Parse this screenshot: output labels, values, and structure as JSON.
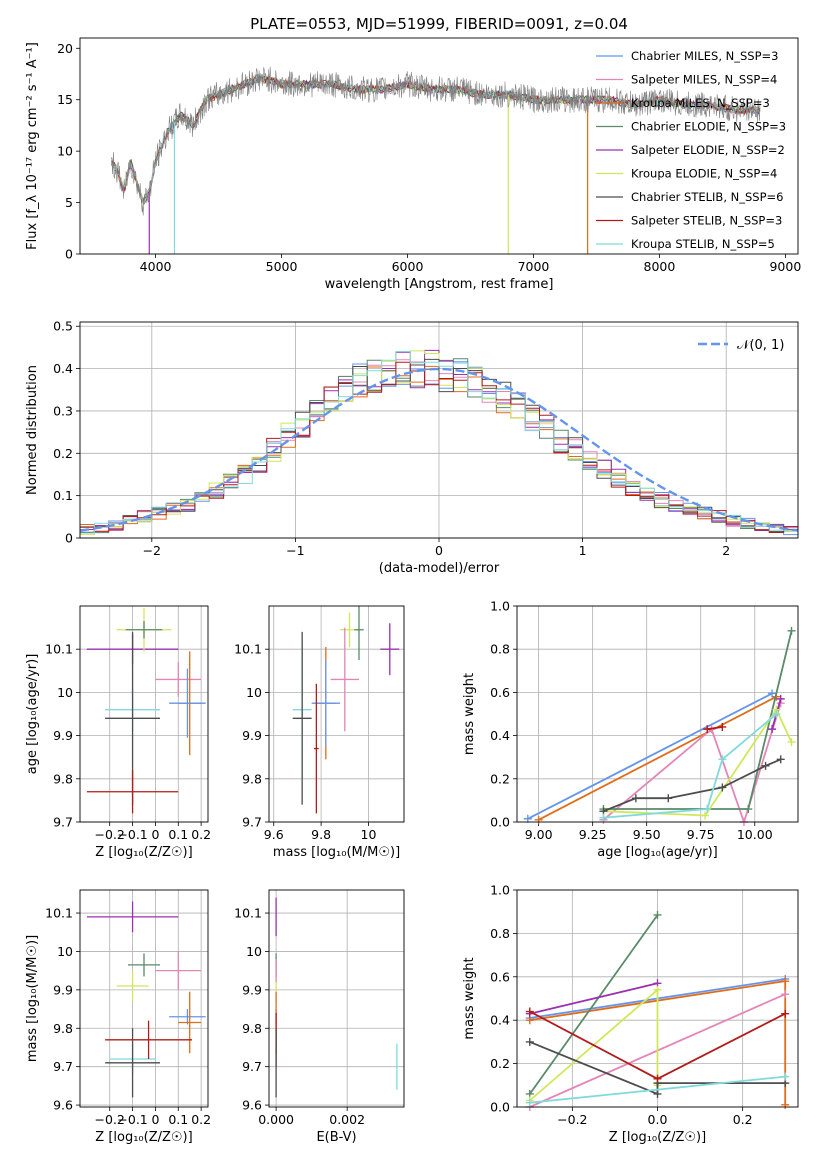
{
  "chart_data": [
    {
      "id": "spectrum",
      "type": "line",
      "title": "PLATE=0553, MJD=51999, FIBERID=0091, z=0.04",
      "xlabel": "wavelength [Angstrom, rest frame]",
      "ylabel": "Flux [f_λ 10⁻¹⁷ erg cm⁻² s⁻¹ A⁻¹]",
      "xlim": [
        3400,
        9100
      ],
      "ylim": [
        0,
        21
      ],
      "xticks": [
        4000,
        5000,
        6000,
        7000,
        8000,
        9000
      ],
      "yticks": [
        0,
        5,
        10,
        15,
        20
      ],
      "grid": false,
      "legend_position": "top-right",
      "legend": [
        {
          "label": "Chabrier MILES, N_SSP=3",
          "color": "#6495ed"
        },
        {
          "label": "Salpeter MILES, N_SSP=4",
          "color": "#e585b7"
        },
        {
          "label": "Kroupa MILES, N_SSP=3",
          "color": "#e06c18"
        },
        {
          "label": "Chabrier ELODIE, N_SSP=3",
          "color": "#5a8a68"
        },
        {
          "label": "Salpeter ELODIE, N_SSP=2",
          "color": "#9b30b0"
        },
        {
          "label": "Kroupa ELODIE, N_SSP=4",
          "color": "#cfe85a"
        },
        {
          "label": "Chabrier STELIB, N_SSP=6",
          "color": "#4d4d4d"
        },
        {
          "label": "Salpeter STELIB, N_SSP=3",
          "color": "#b31b1b"
        },
        {
          "label": "Kroupa STELIB, N_SSP=5",
          "color": "#80dadd"
        }
      ],
      "data_curve": {
        "x": [
          3650,
          3700,
          3750,
          3800,
          3850,
          3900,
          3950,
          4000,
          4100,
          4200,
          4300,
          4400,
          4500,
          4600,
          4700,
          4800,
          4900,
          5000,
          5200,
          5400,
          5600,
          5800,
          6000,
          6200,
          6400,
          6600,
          6800,
          7000,
          7200,
          7400,
          7600,
          7800,
          8000,
          8200,
          8400,
          8600,
          8800
        ],
        "y": [
          9,
          8,
          6,
          9,
          7,
          5,
          6,
          9,
          12,
          13.5,
          12.5,
          15,
          15.5,
          16,
          16.5,
          17,
          17,
          16.5,
          16.5,
          16.5,
          16,
          16,
          16.5,
          16,
          16,
          15.5,
          15.5,
          15,
          15,
          15,
          15,
          14.5,
          15,
          14.5,
          14.5,
          14,
          14
        ]
      }
    },
    {
      "id": "residuals",
      "type": "histogram",
      "xlabel": "(data-model)/error",
      "ylabel": "Normed distribution",
      "xlim": [
        -2.5,
        2.5
      ],
      "ylim": [
        0,
        0.51
      ],
      "xticks": [
        -2,
        -1,
        0,
        1,
        2
      ],
      "yticks": [
        0.0,
        0.1,
        0.2,
        0.3,
        0.4,
        0.5
      ],
      "grid": true,
      "legend_position": "top-right",
      "reference": {
        "label": "𝒩(0, 1)",
        "color": "#6495ed",
        "style": "dashed"
      },
      "bin_centers": [
        -2.45,
        -2.35,
        -2.25,
        -2.15,
        -2.05,
        -1.95,
        -1.85,
        -1.75,
        -1.65,
        -1.55,
        -1.45,
        -1.35,
        -1.25,
        -1.15,
        -1.05,
        -0.95,
        -0.85,
        -0.75,
        -0.65,
        -0.55,
        -0.45,
        -0.35,
        -0.25,
        -0.15,
        -0.05,
        0.05,
        0.15,
        0.25,
        0.35,
        0.45,
        0.55,
        0.65,
        0.75,
        0.85,
        0.95,
        1.05,
        1.15,
        1.25,
        1.35,
        1.45,
        1.55,
        1.65,
        1.75,
        1.85,
        1.95,
        2.05,
        2.15,
        2.25,
        2.35,
        2.45
      ],
      "envelope_values": [
        0.02,
        0.025,
        0.03,
        0.04,
        0.05,
        0.06,
        0.07,
        0.08,
        0.09,
        0.11,
        0.13,
        0.15,
        0.18,
        0.21,
        0.24,
        0.27,
        0.3,
        0.32,
        0.35,
        0.37,
        0.38,
        0.39,
        0.4,
        0.4,
        0.4,
        0.39,
        0.38,
        0.37,
        0.35,
        0.33,
        0.31,
        0.28,
        0.26,
        0.23,
        0.21,
        0.18,
        0.16,
        0.14,
        0.12,
        0.1,
        0.09,
        0.08,
        0.07,
        0.06,
        0.05,
        0.04,
        0.035,
        0.03,
        0.025,
        0.02
      ]
    },
    {
      "id": "age_vs_Z",
      "type": "errorbar",
      "xlabel": "Z [log₁₀(Z/Z☉)]",
      "ylabel": "age  [log₁₀(age/yr)]",
      "xlim": [
        -0.33,
        0.23
      ],
      "ylim": [
        9.7,
        10.2
      ],
      "xticks": [
        -0.2,
        -0.1,
        0.0,
        0.1,
        0.2
      ],
      "yticks": [
        9.7,
        9.8,
        9.9,
        10.0,
        10.1
      ],
      "grid": true,
      "points": [
        {
          "x": -0.1,
          "y": 10.1,
          "xerr": 0.2,
          "yerr": 0.035,
          "color": "#9b30b0"
        },
        {
          "x": -0.05,
          "y": 10.145,
          "xerr": 0.12,
          "yerr": 0.05,
          "color": "#cfe85a"
        },
        {
          "x": -0.05,
          "y": 10.145,
          "xerr": 0.08,
          "yerr": 0.02,
          "color": "#5a8a68"
        },
        {
          "x": 0.1,
          "y": 10.03,
          "xerr": 0.1,
          "yerr": 0.04,
          "color": "#e585b7"
        },
        {
          "x": 0.15,
          "y": 9.975,
          "xerr": 0.05,
          "yerr": 0.12,
          "color": "#e06c18"
        },
        {
          "x": 0.14,
          "y": 9.975,
          "xerr": 0.08,
          "yerr": 0.08,
          "color": "#6495ed"
        },
        {
          "x": -0.1,
          "y": 9.96,
          "xerr": 0.12,
          "yerr": 0.05,
          "color": "#80dadd"
        },
        {
          "x": -0.1,
          "y": 9.94,
          "xerr": 0.12,
          "yerr": 0.2,
          "color": "#4d4d4d"
        },
        {
          "x": -0.1,
          "y": 9.77,
          "xerr": 0.2,
          "yerr": 0.05,
          "color": "#b31b1b"
        }
      ]
    },
    {
      "id": "age_vs_mass",
      "type": "errorbar",
      "xlabel": "mass [log₁₀(M/M☉)]",
      "ylabel": "",
      "xlim": [
        9.58,
        10.15
      ],
      "ylim": [
        9.7,
        10.2
      ],
      "xticks": [
        9.6,
        9.8,
        10.0
      ],
      "yticks": [
        9.7,
        9.8,
        9.9,
        10.0,
        10.1
      ],
      "grid": true,
      "points": [
        {
          "x": 10.09,
          "y": 10.1,
          "xerr": 0.04,
          "yerr": 0.06,
          "color": "#9b30b0"
        },
        {
          "x": 9.92,
          "y": 10.145,
          "xerr": 0.04,
          "yerr": 0.04,
          "color": "#cfe85a"
        },
        {
          "x": 9.96,
          "y": 10.145,
          "xerr": 0.02,
          "yerr": 0.07,
          "color": "#5a8a68"
        },
        {
          "x": 9.9,
          "y": 10.03,
          "xerr": 0.06,
          "yerr": 0.12,
          "color": "#e585b7"
        },
        {
          "x": 9.82,
          "y": 9.975,
          "xerr": 0.04,
          "yerr": 0.13,
          "color": "#e06c18"
        },
        {
          "x": 9.82,
          "y": 9.975,
          "xerr": 0.06,
          "yerr": 0.1,
          "color": "#6495ed"
        },
        {
          "x": 9.72,
          "y": 9.96,
          "xerr": 0.04,
          "yerr": 0.16,
          "color": "#80dadd"
        },
        {
          "x": 9.72,
          "y": 9.94,
          "xerr": 0.04,
          "yerr": 0.2,
          "color": "#4d4d4d"
        },
        {
          "x": 9.78,
          "y": 9.87,
          "xerr": 0.01,
          "yerr": 0.15,
          "color": "#b31b1b"
        }
      ]
    },
    {
      "id": "weight_vs_age",
      "type": "line",
      "xlabel": "age  [log₁₀(age/yr)]",
      "ylabel": "mass weight",
      "xlim": [
        8.9,
        10.2
      ],
      "ylim": [
        0,
        1
      ],
      "xticks": [
        9.0,
        9.25,
        9.5,
        9.75,
        10.0
      ],
      "xticklabels": [
        "9.00",
        "9.25",
        "9.50",
        "9.75",
        "10.00"
      ],
      "yticks": [
        0,
        0.2,
        0.4,
        0.6,
        0.8,
        1.0
      ],
      "yticklabels": [
        "0.0",
        "0.2",
        "0.4",
        "0.6",
        "0.8",
        "1.0"
      ],
      "grid": true,
      "series": [
        {
          "color": "#6495ed",
          "x": [
            8.95,
            10.08
          ],
          "y": [
            0.015,
            0.595
          ]
        },
        {
          "color": "#e06c18",
          "x": [
            9.0,
            10.1
          ],
          "y": [
            0.01,
            0.58
          ]
        },
        {
          "color": "#e585b7",
          "x": [
            9.3,
            9.8,
            9.95,
            10.12
          ],
          "y": [
            0.01,
            0.43,
            0.0,
            0.55
          ]
        },
        {
          "color": "#5a8a68",
          "x": [
            9.3,
            9.78,
            9.97,
            10.17
          ],
          "y": [
            0.06,
            0.06,
            0.06,
            0.885
          ]
        },
        {
          "color": "#9b30b0",
          "x": [
            10.08,
            10.12
          ],
          "y": [
            0.43,
            0.57
          ]
        },
        {
          "color": "#cfe85a",
          "x": [
            9.3,
            9.77,
            10.1,
            10.17
          ],
          "y": [
            0.05,
            0.03,
            0.52,
            0.37
          ]
        },
        {
          "color": "#4d4d4d",
          "x": [
            9.3,
            9.45,
            9.6,
            9.85,
            10.05,
            10.12
          ],
          "y": [
            0.05,
            0.11,
            0.11,
            0.16,
            0.26,
            0.29
          ]
        },
        {
          "color": "#b31b1b",
          "x": [
            9.78,
            9.85
          ],
          "y": [
            0.43,
            0.44
          ]
        },
        {
          "color": "#80dadd",
          "x": [
            9.3,
            9.78,
            9.85,
            10.1
          ],
          "y": [
            0.02,
            0.06,
            0.29,
            0.5
          ]
        }
      ]
    },
    {
      "id": "mass_vs_Z",
      "type": "errorbar",
      "xlabel": "Z [log₁₀(Z/Z☉)]",
      "ylabel": "mass [log₁₀(M/M☉)]",
      "xlim": [
        -0.33,
        0.23
      ],
      "ylim": [
        9.595,
        10.16
      ],
      "xticks": [
        -0.2,
        -0.1,
        0.0,
        0.1,
        0.2
      ],
      "yticks": [
        9.6,
        9.7,
        9.8,
        9.9,
        10.0,
        10.1
      ],
      "grid": true,
      "points": [
        {
          "x": -0.1,
          "y": 10.09,
          "xerr": 0.2,
          "yerr": 0.04,
          "color": "#9b30b0"
        },
        {
          "x": -0.05,
          "y": 9.965,
          "xerr": 0.07,
          "yerr": 0.03,
          "color": "#5a8a68"
        },
        {
          "x": -0.1,
          "y": 9.91,
          "xerr": 0.07,
          "yerr": 0.04,
          "color": "#cfe85a"
        },
        {
          "x": 0.1,
          "y": 9.95,
          "xerr": 0.1,
          "yerr": 0.05,
          "color": "#e585b7"
        },
        {
          "x": 0.14,
          "y": 9.83,
          "xerr": 0.08,
          "yerr": 0.02,
          "color": "#6495ed"
        },
        {
          "x": 0.15,
          "y": 9.815,
          "xerr": 0.05,
          "yerr": 0.08,
          "color": "#e06c18"
        },
        {
          "x": -0.1,
          "y": 9.72,
          "xerr": 0.1,
          "yerr": 0.04,
          "color": "#80dadd"
        },
        {
          "x": -0.1,
          "y": 9.71,
          "xerr": 0.12,
          "yerr": 0.09,
          "color": "#4d4d4d"
        },
        {
          "x": -0.03,
          "y": 9.77,
          "xerr": 0.19,
          "yerr": 0.05,
          "color": "#b31b1b"
        }
      ]
    },
    {
      "id": "mass_vs_ebv",
      "type": "errorbar",
      "xlabel": "E(B-V)",
      "ylabel": "",
      "xlim": [
        -0.0002,
        0.0036
      ],
      "ylim": [
        9.595,
        10.16
      ],
      "xticks": [
        0.0,
        0.002
      ],
      "xticklabels": [
        "0.000",
        "0.002"
      ],
      "yticks": [
        9.6,
        9.7,
        9.8,
        9.9,
        10.0,
        10.1
      ],
      "grid": true,
      "points": [
        {
          "x": 0.0,
          "y": 10.09,
          "xerr": 0,
          "yerr": 0.05,
          "color": "#9b30b0"
        },
        {
          "x": 0.0,
          "y": 9.965,
          "xerr": 0,
          "yerr": 0.03,
          "color": "#5a8a68"
        },
        {
          "x": 0.0,
          "y": 9.91,
          "xerr": 0,
          "yerr": 0.04,
          "color": "#cfe85a"
        },
        {
          "x": 0.0,
          "y": 9.95,
          "xerr": 0,
          "yerr": 0.03,
          "color": "#e585b7"
        },
        {
          "x": 0.0,
          "y": 9.83,
          "xerr": 0,
          "yerr": 0.02,
          "color": "#6495ed"
        },
        {
          "x": 0.0,
          "y": 9.815,
          "xerr": 0,
          "yerr": 0.08,
          "color": "#e06c18"
        },
        {
          "x": 0.0,
          "y": 9.77,
          "xerr": 0,
          "yerr": 0.07,
          "color": "#b31b1b"
        },
        {
          "x": 0.0,
          "y": 9.71,
          "xerr": 0,
          "yerr": 0.09,
          "color": "#4d4d4d"
        },
        {
          "x": 0.0034,
          "y": 9.7,
          "xerr": 0,
          "yerr": 0.06,
          "color": "#80dadd"
        }
      ]
    },
    {
      "id": "weight_vs_Z",
      "type": "line",
      "xlabel": "Z [log₁₀(Z/Z☉)]",
      "ylabel": "mass weight",
      "xlim": [
        -0.33,
        0.33
      ],
      "ylim": [
        0,
        1
      ],
      "xticks": [
        -0.2,
        0.0,
        0.2
      ],
      "xticklabels": [
        "−0.2",
        "0.0",
        "0.2"
      ],
      "yticks": [
        0,
        0.2,
        0.4,
        0.6,
        0.8,
        1.0
      ],
      "yticklabels": [
        "0.0",
        "0.2",
        "0.4",
        "0.6",
        "0.8",
        "1.0"
      ],
      "grid": true,
      "series": [
        {
          "color": "#6495ed",
          "x": [
            -0.3,
            0.3
          ],
          "y": [
            0.41,
            0.59
          ]
        },
        {
          "color": "#e06c18",
          "x": [
            -0.3,
            0.3,
            0.3
          ],
          "y": [
            0.4,
            0.58,
            0.01
          ]
        },
        {
          "color": "#e585b7",
          "x": [
            -0.3,
            0.3
          ],
          "y": [
            0.0,
            0.52
          ]
        },
        {
          "color": "#5a8a68",
          "x": [
            -0.3,
            0.0
          ],
          "y": [
            0.06,
            0.885
          ]
        },
        {
          "color": "#9b30b0",
          "x": [
            -0.3,
            0.0
          ],
          "y": [
            0.43,
            0.57
          ]
        },
        {
          "color": "#cfe85a",
          "x": [
            -0.3,
            0.0,
            0.0
          ],
          "y": [
            0.03,
            0.54,
            0.1
          ]
        },
        {
          "color": "#4d4d4d",
          "x": [
            -0.3,
            0.0,
            0.0,
            0.3
          ],
          "y": [
            0.3,
            0.06,
            0.11,
            0.11
          ]
        },
        {
          "color": "#b31b1b",
          "x": [
            -0.3,
            0.0,
            0.3
          ],
          "y": [
            0.44,
            0.13,
            0.43
          ]
        },
        {
          "color": "#80dadd",
          "x": [
            -0.3,
            0.3
          ],
          "y": [
            0.02,
            0.14
          ]
        }
      ]
    }
  ]
}
